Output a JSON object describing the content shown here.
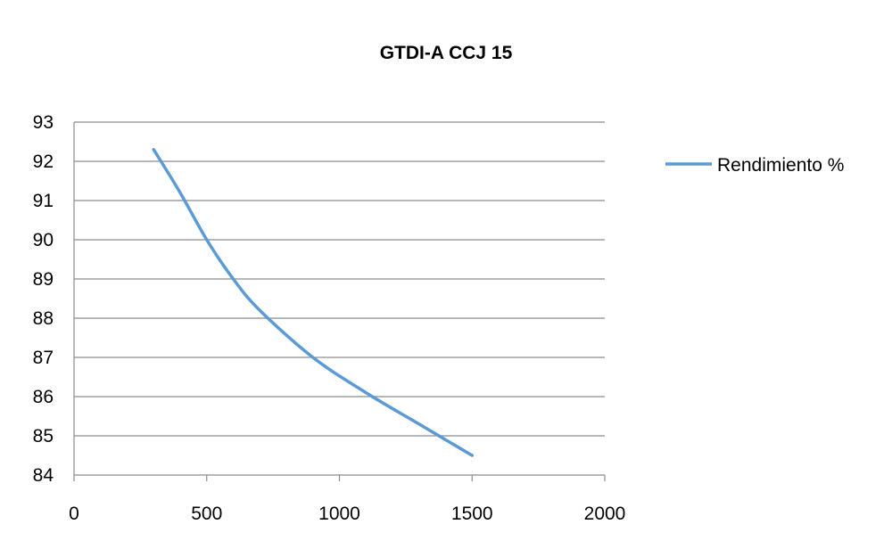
{
  "chart_data": {
    "type": "line",
    "title": "GTDI-A CCJ 15",
    "xlabel": "",
    "ylabel": "",
    "xlim": [
      0,
      2000
    ],
    "ylim": [
      84,
      93
    ],
    "x_ticks": [
      "0",
      "500",
      "1000",
      "1500",
      "2000"
    ],
    "y_ticks": [
      "84",
      "85",
      "86",
      "87",
      "88",
      "89",
      "90",
      "91",
      "92",
      "93"
    ],
    "grid": true,
    "legend_position": "right",
    "series": [
      {
        "name": "Rendimiento %",
        "color": "#5b9bd5",
        "x": [
          300,
          400,
          500,
          600,
          700,
          900,
          1100,
          1300,
          1500
        ],
        "y": [
          92.3,
          91.2,
          90.0,
          89.0,
          88.2,
          87.0,
          86.1,
          85.3,
          84.5
        ]
      }
    ]
  }
}
